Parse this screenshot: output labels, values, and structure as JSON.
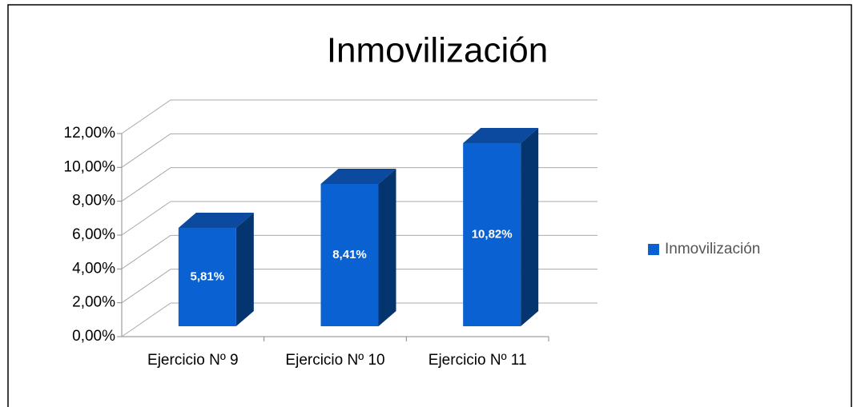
{
  "chart_data": {
    "type": "bar3d",
    "title": "Inmovilización",
    "categories": [
      "Ejercicio Nº 9",
      "Ejercicio Nº 10",
      "Ejercicio Nº 11"
    ],
    "series": [
      {
        "name": "Inmovilización",
        "color": "#0a62d2",
        "values": [
          5.81,
          8.41,
          10.82
        ],
        "value_labels": [
          "5,81%",
          "8,41%",
          "10,82%"
        ]
      }
    ],
    "ylim": [
      0,
      12
    ],
    "yticks": [
      {
        "value": 0,
        "label": "0,00%"
      },
      {
        "value": 2,
        "label": "2,00%"
      },
      {
        "value": 4,
        "label": "4,00%"
      },
      {
        "value": 6,
        "label": "6,00%"
      },
      {
        "value": 8,
        "label": "8,00%"
      },
      {
        "value": 10,
        "label": "10,00%"
      },
      {
        "value": 12,
        "label": "12,00%"
      }
    ],
    "grid": true,
    "legend": "right"
  }
}
